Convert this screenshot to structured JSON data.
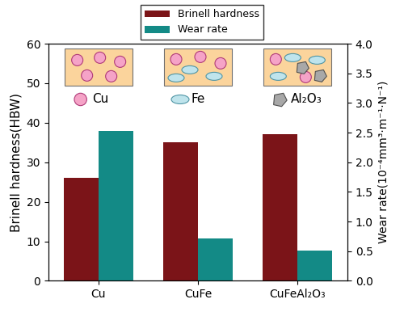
{
  "chart_data": {
    "type": "bar",
    "categories": [
      "Cu",
      "CuFe",
      "CuFeAl₂O₃"
    ],
    "series": [
      {
        "name": "Brinell hardness",
        "color": "#7b1418",
        "values": [
          26,
          35,
          37
        ]
      },
      {
        "name": "Wear rate",
        "color": "#138a86",
        "values": [
          2.53,
          0.72,
          0.51
        ],
        "axis": "y2"
      }
    ],
    "y_label": "Brinell hardness(HBW)",
    "y2_label": "Wear rate(10⁻⁴mm³·m⁻¹·N⁻¹)",
    "ylim": [
      0,
      60
    ],
    "yticks": [
      0,
      10,
      20,
      30,
      40,
      50,
      60
    ],
    "y2lim": [
      0.0,
      4.0
    ],
    "y2ticks": [
      0.0,
      0.5,
      1.0,
      1.5,
      2.0,
      2.5,
      3.0,
      3.5,
      4.0
    ],
    "legend": "upper center",
    "annotations": [
      "Cu",
      "Fe",
      "Al₂O₃"
    ]
  }
}
